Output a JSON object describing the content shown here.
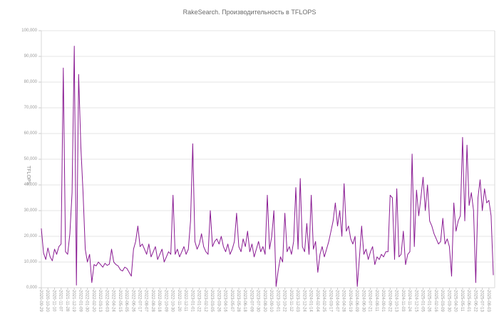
{
  "chart": {
    "title": "RakeSearch. Производительность в TFLOPS",
    "y_axis_title": "TFLOPS"
  },
  "colors": {
    "line": "#8A1B93",
    "grid": "#e5e5e5",
    "axis_border": "#d9d9d9",
    "tick_mark": "#c9c9c9",
    "tick_text": "#9a9a9a",
    "title_text": "#6b6b6b",
    "background": "#ffffff"
  },
  "chart_data": {
    "type": "line",
    "title": "RakeSearch. Производительность в TFLOPS",
    "xlabel": "",
    "ylabel": "TFLOPS",
    "ylim": [
      0,
      100000
    ],
    "grid": true,
    "legend": "none",
    "y_tick_labels": [
      "100,000",
      "90,000",
      "80,000",
      "70,000",
      "60,000",
      "50,000",
      "40,000",
      "30,000",
      "20,000",
      "10,000",
      "0,000"
    ],
    "label_every": 3,
    "x_labels": [
      "2020-09-29",
      "2020-10-20",
      "2020-11-10",
      "2021-11-07",
      "2021-11-28",
      "2021-12-19",
      "2022-01-09",
      "2022-01-30",
      "2022-02-20",
      "2022-03-13",
      "2022-04-03",
      "2022-04-24",
      "2022-05-15",
      "2022-06-05",
      "2022-06-26",
      "2022-07-17",
      "2022-08-07",
      "2022-08-28",
      "2022-09-18",
      "2022-10-09",
      "2022-10-30",
      "2022-11-20",
      "2022-12-11",
      "2023-01-01",
      "2023-01-22",
      "2023-02-12",
      "2023-03-05",
      "2023-03-26",
      "2023-04-16",
      "2023-05-07",
      "2023-05-28",
      "2023-06-18",
      "2023-07-09",
      "2023-07-30",
      "2023-08-20",
      "2023-09-10",
      "2023-10-01",
      "2023-10-22",
      "2023-11-12",
      "2023-12-03",
      "2023-12-24",
      "2024-01-14",
      "2024-02-04",
      "2024-02-25",
      "2024-03-17",
      "2024-04-07",
      "2024-04-28",
      "2024-05-19",
      "2024-06-09",
      "2024-06-30",
      "2024-07-21",
      "2024-08-11",
      "2024-09-01",
      "2024-09-22",
      "2024-10-13",
      "2024-11-03",
      "2024-11-24",
      "2024-12-15",
      "2025-01-05",
      "2025-01-26",
      "2025-02-16",
      "2025-03-09",
      "2025-03-30",
      "2025-04-20",
      "2025-05-11",
      "2025-06-01",
      "2025-06-22",
      "2025-07-13",
      "2025-08-03"
    ],
    "series": [
      {
        "name": "TFLOPS",
        "values": [
          23000,
          13500,
          11000,
          15500,
          12000,
          10500,
          15000,
          13000,
          16000,
          17000,
          85500,
          14000,
          13000,
          21000,
          37000,
          94000,
          1000,
          83000,
          55000,
          37000,
          15000,
          10000,
          13000,
          2000,
          9000,
          8500,
          10000,
          9000,
          8000,
          9500,
          8700,
          9200,
          15000,
          10000,
          9000,
          8500,
          7000,
          6500,
          8000,
          7500,
          6000,
          4500,
          15000,
          18000,
          24000,
          16000,
          17000,
          15000,
          13000,
          17000,
          12000,
          14000,
          16000,
          11000,
          13000,
          15000,
          10000,
          12000,
          14000,
          13000,
          36000,
          13000,
          15000,
          12000,
          14000,
          16000,
          13000,
          15000,
          26000,
          56000,
          18000,
          15000,
          17000,
          21000,
          16000,
          14000,
          13000,
          30000,
          16000,
          18000,
          19000,
          17000,
          20000,
          16000,
          14000,
          17000,
          13000,
          15000,
          18000,
          29000,
          16000,
          14000,
          19000,
          16000,
          22000,
          14000,
          17000,
          12000,
          15000,
          18000,
          14000,
          16000,
          13000,
          36000,
          15000,
          20000,
          30000,
          500,
          7000,
          12000,
          10000,
          29000,
          14000,
          16000,
          13000,
          18000,
          39000,
          15000,
          42500,
          16000,
          14000,
          25000,
          13000,
          36000,
          15000,
          18000,
          6000,
          13000,
          16000,
          12000,
          15000,
          18000,
          22000,
          26000,
          33000,
          24000,
          30000,
          20000,
          40500,
          22000,
          24000,
          19000,
          17000,
          20000,
          500,
          12000,
          24000,
          13000,
          15000,
          11000,
          14000,
          16000,
          9000,
          12000,
          11000,
          13000,
          12000,
          14000,
          14000,
          36000,
          35000,
          11000,
          38500,
          12000,
          13000,
          22000,
          9000,
          13000,
          14000,
          52000,
          16000,
          38000,
          28000,
          35000,
          43000,
          30000,
          40000,
          26000,
          24000,
          21000,
          19000,
          17000,
          18000,
          27000,
          17000,
          19000,
          16000,
          4500,
          33000,
          22000,
          26000,
          28000,
          58500,
          26000,
          55500,
          32000,
          37000,
          30000,
          2000,
          35000,
          42000,
          30000,
          38500,
          33000,
          34000,
          28000,
          5000
        ]
      }
    ]
  }
}
